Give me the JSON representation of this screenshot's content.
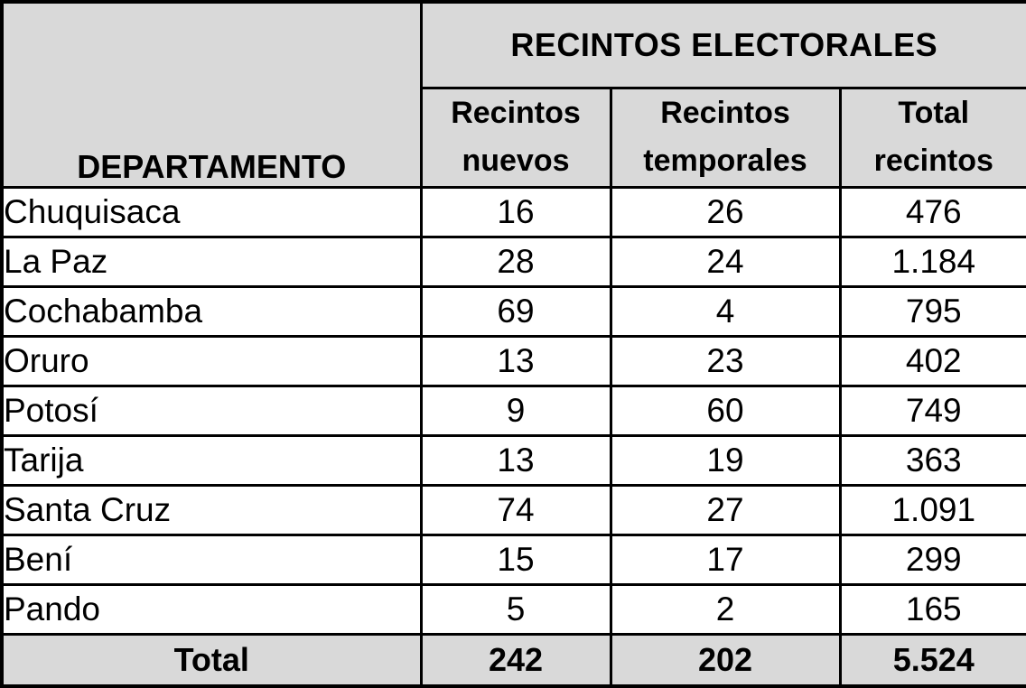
{
  "table": {
    "group_header": "RECINTOS ELECTORALES",
    "dept_header": "DEPARTAMENTO",
    "col_headers": [
      "Recintos\nnuevos",
      "Recintos\ntemporales",
      "Total\nrecintos"
    ],
    "rows": [
      [
        "Chuquisaca",
        "16",
        "26",
        "476"
      ],
      [
        "La Paz",
        "28",
        "24",
        "1.184"
      ],
      [
        "Cochabamba",
        "69",
        "4",
        "795"
      ],
      [
        "Oruro",
        "13",
        "23",
        "402"
      ],
      [
        "Potosí",
        "9",
        "60",
        "749"
      ],
      [
        "Tarija",
        "13",
        "19",
        "363"
      ],
      [
        "Santa Cruz",
        "74",
        "27",
        "1.091"
      ],
      [
        "Bení",
        "15",
        "17",
        "299"
      ],
      [
        "Pando",
        "5",
        "2",
        "165"
      ]
    ],
    "total_row": [
      "Total",
      "242",
      "202",
      "5.524"
    ],
    "colors": {
      "header_bg": "#d9d9d9",
      "border": "#000000",
      "body_bg": "#ffffff",
      "text": "#000000"
    }
  }
}
